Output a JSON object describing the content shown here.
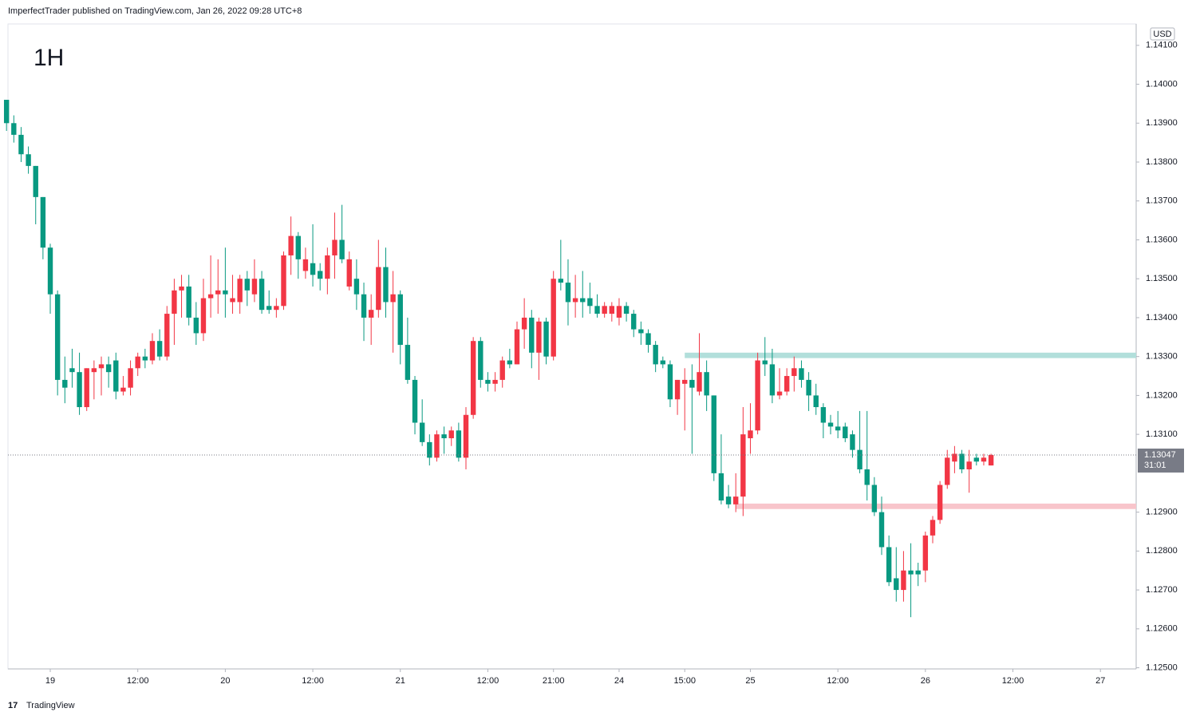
{
  "header": "ImperfectTrader published on TradingView.com, Jan 26, 2022 09:28 UTC+8",
  "footer": "TradingView",
  "chart_data": {
    "type": "candlestick",
    "title": "1H",
    "currency": "USD",
    "up_color": "#f23645",
    "down_color": "#089981",
    "open": [
      1.1396,
      1.139,
      1.1387,
      1.1382,
      1.1379,
      1.1371,
      1.1358,
      1.1346,
      1.1324,
      1.1327,
      1.1326,
      1.1317,
      1.1326,
      1.1327,
      1.1328,
      1.1329,
      1.1321,
      1.1322,
      1.1327,
      1.133,
      1.1329,
      1.1334,
      1.133,
      1.1341,
      1.1347,
      1.1348,
      1.134,
      1.1336,
      1.1345,
      1.1346,
      1.1347,
      1.1344,
      1.1344,
      1.135,
      1.1346,
      1.135,
      1.1343,
      1.1342,
      1.1343,
      1.1356,
      1.1361,
      1.1352,
      1.1354,
      1.1352,
      1.135,
      1.1356,
      1.136,
      1.1348,
      1.135,
      1.1346,
      1.134,
      1.1342,
      1.1353,
      1.1344,
      1.1346,
      1.1333,
      1.1324,
      1.1313,
      1.1308,
      1.1304,
      1.131,
      1.1309,
      1.1311,
      1.1304,
      1.1315,
      1.1334,
      1.1324,
      1.1323,
      1.1324,
      1.1329,
      1.1328,
      1.1337,
      1.134,
      1.1331,
      1.1339,
      1.133,
      1.135,
      1.1349,
      1.1344,
      1.1345,
      1.1345,
      1.1343,
      1.1341,
      1.1341,
      1.134,
      1.1343,
      1.1341,
      1.1337,
      1.1336,
      1.1333,
      1.1329,
      1.1328,
      1.1319,
      1.1323,
      1.1324,
      1.1321,
      1.1326,
      1.132,
      1.13,
      1.1294,
      1.1292,
      1.1294,
      1.1309,
      1.1311,
      1.1329,
      1.1328,
      1.132,
      1.1321,
      1.1325,
      1.1327,
      1.1324,
      1.132,
      1.1317,
      1.1313,
      1.1312,
      1.1312,
      1.131,
      1.1306,
      1.1301,
      1.1297,
      1.129,
      1.1281,
      1.1273,
      1.127,
      1.1275,
      1.1275,
      1.1275,
      1.1284,
      1.1288,
      1.1297,
      1.1303,
      1.1305,
      1.1301,
      1.1304,
      1.1303,
      1.1302
    ],
    "high": [
      1.1396,
      1.1392,
      1.1389,
      1.1384,
      1.1379,
      1.1371,
      1.1359,
      1.1347,
      1.133,
      1.1332,
      1.1331,
      1.1327,
      1.1329,
      1.133,
      1.133,
      1.1331,
      1.1325,
      1.1329,
      1.1331,
      1.1332,
      1.1336,
      1.1337,
      1.1343,
      1.135,
      1.1351,
      1.1351,
      1.1344,
      1.135,
      1.1356,
      1.1355,
      1.1358,
      1.1351,
      1.1351,
      1.1352,
      1.1355,
      1.1352,
      1.1347,
      1.1345,
      1.1357,
      1.1366,
      1.1362,
      1.1358,
      1.1364,
      1.1354,
      1.1358,
      1.1367,
      1.1369,
      1.1357,
      1.1355,
      1.1349,
      1.1346,
      1.136,
      1.1358,
      1.1352,
      1.1347,
      1.134,
      1.1325,
      1.1319,
      1.131,
      1.1311,
      1.1312,
      1.1312,
      1.1313,
      1.1317,
      1.1335,
      1.1335,
      1.1326,
      1.1326,
      1.133,
      1.1332,
      1.1339,
      1.1345,
      1.1342,
      1.134,
      1.134,
      1.1352,
      1.136,
      1.1355,
      1.1351,
      1.1352,
      1.1349,
      1.1346,
      1.1344,
      1.1344,
      1.1345,
      1.1344,
      1.1342,
      1.1339,
      1.1337,
      1.1334,
      1.133,
      1.1329,
      1.1324,
      1.1327,
      1.1328,
      1.1336,
      1.1329,
      1.132,
      1.131,
      1.1297,
      1.13,
      1.1317,
      1.1318,
      1.1331,
      1.1335,
      1.1332,
      1.1327,
      1.1327,
      1.133,
      1.1329,
      1.1326,
      1.1323,
      1.1318,
      1.1315,
      1.1316,
      1.1313,
      1.1311,
      1.1316,
      1.1316,
      1.1299,
      1.1294,
      1.1284,
      1.1281,
      1.128,
      1.1282,
      1.1277,
      1.1285,
      1.1289,
      1.1298,
      1.1306,
      1.1307,
      1.1306,
      1.1306,
      1.1305,
      1.1305,
      1.1305
    ],
    "low": [
      1.1388,
      1.1385,
      1.138,
      1.1377,
      1.1364,
      1.1355,
      1.1341,
      1.132,
      1.1318,
      1.1322,
      1.1315,
      1.1316,
      1.1319,
      1.132,
      1.1322,
      1.1319,
      1.132,
      1.132,
      1.1325,
      1.1327,
      1.1328,
      1.1329,
      1.1329,
      1.1333,
      1.134,
      1.1338,
      1.1333,
      1.1334,
      1.134,
      1.1341,
      1.134,
      1.1341,
      1.1341,
      1.1343,
      1.1344,
      1.1341,
      1.1341,
      1.134,
      1.1342,
      1.1351,
      1.135,
      1.135,
      1.1348,
      1.1347,
      1.1346,
      1.135,
      1.1354,
      1.1347,
      1.1342,
      1.1334,
      1.1333,
      1.134,
      1.134,
      1.1331,
      1.1328,
      1.1323,
      1.131,
      1.1307,
      1.1302,
      1.1303,
      1.1305,
      1.1307,
      1.1303,
      1.1301,
      1.1314,
      1.1322,
      1.1321,
      1.1321,
      1.1322,
      1.1327,
      1.1328,
      1.1332,
      1.1327,
      1.1324,
      1.1328,
      1.1329,
      1.1347,
      1.1338,
      1.134,
      1.134,
      1.1341,
      1.134,
      1.134,
      1.1339,
      1.1338,
      1.1339,
      1.1335,
      1.1333,
      1.1331,
      1.1326,
      1.1327,
      1.1317,
      1.1315,
      1.1311,
      1.1305,
      1.132,
      1.1316,
      1.1298,
      1.1292,
      1.1291,
      1.129,
      1.1289,
      1.1305,
      1.131,
      1.1325,
      1.1318,
      1.1319,
      1.132,
      1.1321,
      1.1322,
      1.1316,
      1.1315,
      1.1309,
      1.131,
      1.1309,
      1.1308,
      1.1304,
      1.13,
      1.1293,
      1.1289,
      1.1279,
      1.1271,
      1.1267,
      1.1267,
      1.1263,
      1.1271,
      1.1272,
      1.1282,
      1.1287,
      1.1296,
      1.13,
      1.13,
      1.1295,
      1.1302,
      1.1302,
      1.1302
    ],
    "close": [
      1.139,
      1.1387,
      1.1382,
      1.1379,
      1.1371,
      1.1358,
      1.1346,
      1.1324,
      1.1322,
      1.1326,
      1.1317,
      1.1327,
      1.1327,
      1.1328,
      1.1326,
      1.1321,
      1.1322,
      1.1327,
      1.133,
      1.1329,
      1.1334,
      1.133,
      1.1341,
      1.1347,
      1.1348,
      1.134,
      1.1336,
      1.1345,
      1.1346,
      1.1347,
      1.1346,
      1.1345,
      1.135,
      1.1347,
      1.135,
      1.1342,
      1.1342,
      1.1343,
      1.1356,
      1.1361,
      1.1355,
      1.1355,
      1.1351,
      1.135,
      1.1356,
      1.136,
      1.1355,
      1.1355,
      1.1346,
      1.134,
      1.1342,
      1.1353,
      1.1344,
      1.1346,
      1.1333,
      1.1324,
      1.1313,
      1.1308,
      1.1304,
      1.131,
      1.1309,
      1.1311,
      1.1304,
      1.1315,
      1.1334,
      1.1324,
      1.1323,
      1.1324,
      1.1329,
      1.1328,
      1.1337,
      1.134,
      1.1331,
      1.1339,
      1.133,
      1.135,
      1.1349,
      1.1344,
      1.1345,
      1.1344,
      1.1343,
      1.1341,
      1.1343,
      1.1343,
      1.1343,
      1.1341,
      1.1337,
      1.1336,
      1.1333,
      1.1328,
      1.1328,
      1.1319,
      1.1324,
      1.1324,
      1.1322,
      1.1326,
      1.132,
      1.13,
      1.1293,
      1.1292,
      1.1294,
      1.131,
      1.1311,
      1.1329,
      1.1328,
      1.132,
      1.1321,
      1.1325,
      1.1327,
      1.1324,
      1.132,
      1.1317,
      1.1313,
      1.1312,
      1.1311,
      1.1309,
      1.1306,
      1.1301,
      1.1297,
      1.129,
      1.1281,
      1.1272,
      1.127,
      1.1275,
      1.1274,
      1.1274,
      1.1284,
      1.1288,
      1.1297,
      1.1304,
      1.1305,
      1.1301,
      1.1303,
      1.1303,
      1.1304,
      1.13047
    ],
    "xlim": [
      0.2,
      154.9
    ],
    "xticks": [
      {
        "value": 6,
        "label": "19"
      },
      {
        "value": 18,
        "label": "12:00"
      },
      {
        "value": 30,
        "label": "20"
      },
      {
        "value": 42,
        "label": "12:00"
      },
      {
        "value": 54,
        "label": "21"
      },
      {
        "value": 66,
        "label": "12:00"
      },
      {
        "value": 75,
        "label": "21:00"
      },
      {
        "value": 84,
        "label": "24"
      },
      {
        "value": 93,
        "label": "15:00"
      },
      {
        "value": 102,
        "label": "25"
      },
      {
        "value": 114,
        "label": "12:00"
      },
      {
        "value": 126,
        "label": "26"
      },
      {
        "value": 138,
        "label": "12:00"
      },
      {
        "value": 150,
        "label": "27"
      }
    ],
    "ylim": [
      1.12497,
      1.14155
    ],
    "yticks": [
      {
        "value": 1.125,
        "label": "1.12500"
      },
      {
        "value": 1.126,
        "label": "1.12600"
      },
      {
        "value": 1.127,
        "label": "1.12700"
      },
      {
        "value": 1.128,
        "label": "1.12800"
      },
      {
        "value": 1.129,
        "label": "1.12900"
      },
      {
        "value": 1.131,
        "label": "1.13100"
      },
      {
        "value": 1.132,
        "label": "1.13200"
      },
      {
        "value": 1.133,
        "label": "1.13300"
      },
      {
        "value": 1.134,
        "label": "1.13400"
      },
      {
        "value": 1.135,
        "label": "1.13500"
      },
      {
        "value": 1.136,
        "label": "1.13600"
      },
      {
        "value": 1.137,
        "label": "1.13700"
      },
      {
        "value": 1.138,
        "label": "1.13800"
      },
      {
        "value": 1.139,
        "label": "1.13900"
      },
      {
        "value": 1.14,
        "label": "1.14000"
      },
      {
        "value": 1.141,
        "label": "1.14100"
      }
    ],
    "last_price": {
      "value": 1.13047,
      "label": "1.13047",
      "countdown": "31:01",
      "color": "#787b86"
    },
    "zones": [
      {
        "start": 93,
        "top": 1.1331,
        "bottom": 1.13296,
        "color": "#b2dfdb"
      },
      {
        "start": 100,
        "top": 1.12922,
        "bottom": 1.12908,
        "color": "#f8c5cb"
      }
    ]
  }
}
